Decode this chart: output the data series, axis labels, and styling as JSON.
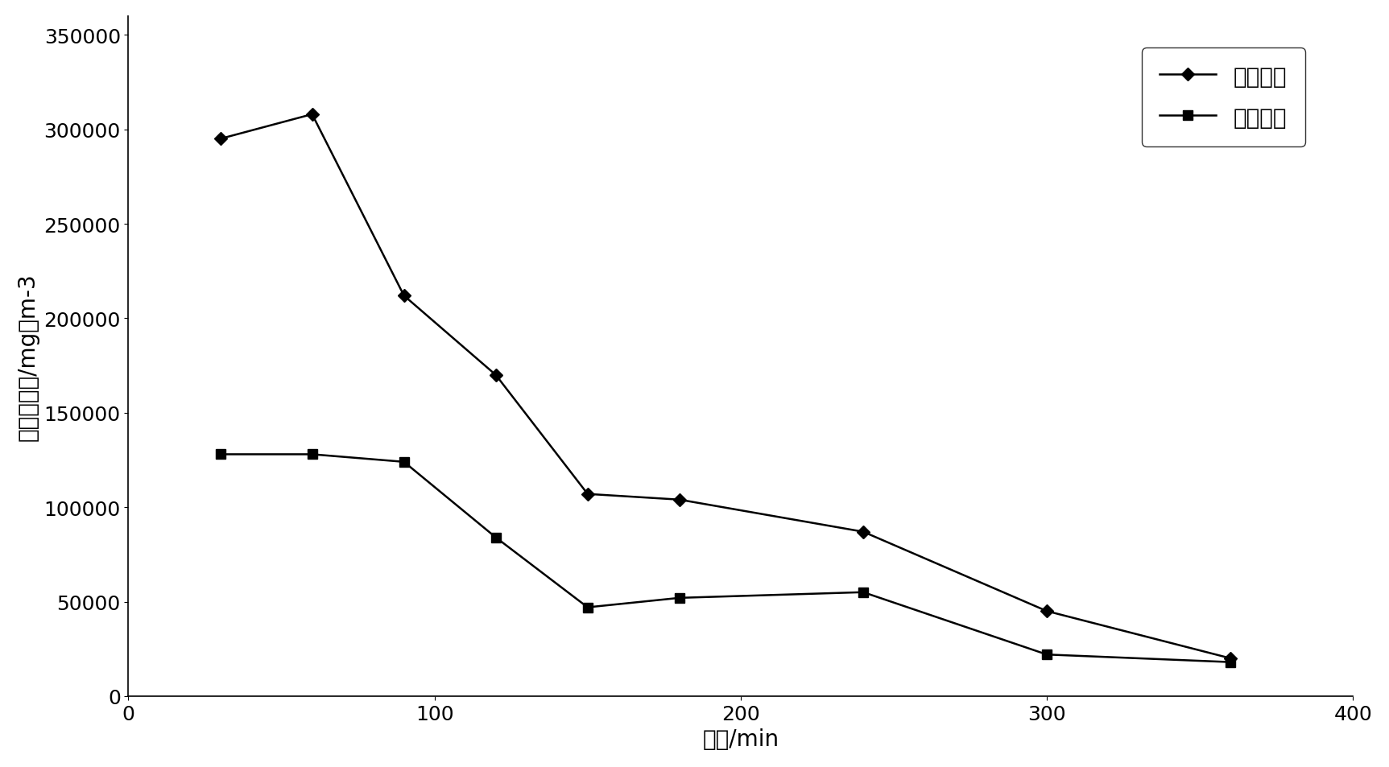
{
  "inlet_x": [
    30,
    60,
    90,
    120,
    150,
    180,
    240,
    300,
    360
  ],
  "inlet_y": [
    295000,
    308000,
    212000,
    170000,
    107000,
    104000,
    87000,
    45000,
    20000
  ],
  "outlet_x": [
    30,
    60,
    90,
    120,
    150,
    180,
    240,
    300,
    360
  ],
  "outlet_y": [
    128000,
    128000,
    124000,
    84000,
    47000,
    52000,
    55000,
    22000,
    18000
  ],
  "xlabel": "时间/min",
  "ylabel": "磷化氢浓度/mg．m-3",
  "ylabel_line1": "磷化氢浓度/mg．m",
  "ylabel_line2": "-3",
  "legend_inlet": "进口浓度",
  "legend_outlet": "出口浓度",
  "xlim": [
    0,
    400
  ],
  "ylim": [
    0,
    360000
  ],
  "xticks": [
    0,
    100,
    200,
    300,
    400
  ],
  "yticks": [
    0,
    50000,
    100000,
    150000,
    200000,
    250000,
    300000,
    350000
  ],
  "ytick_labels": [
    "0",
    "50000",
    "100000",
    "150000",
    "200000",
    "250000",
    "300000",
    "350000"
  ],
  "background_color": "#ffffff",
  "line_color": "#000000",
  "linewidth": 1.8,
  "markersize": 8,
  "font_size_label": 20,
  "font_size_tick": 18,
  "font_size_legend": 20
}
